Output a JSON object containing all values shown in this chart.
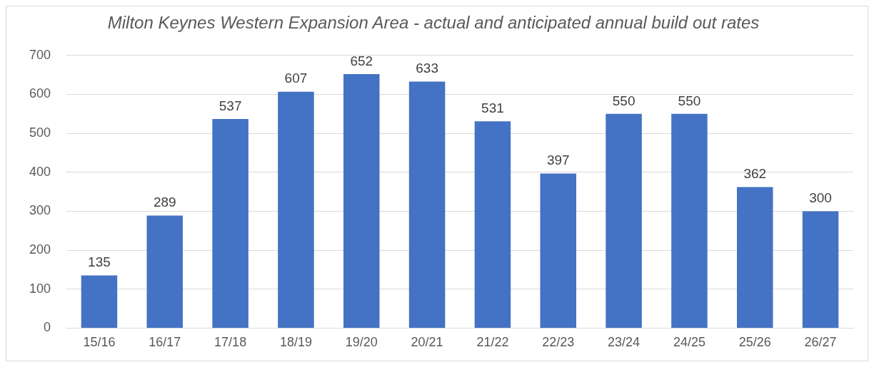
{
  "chart_data": {
    "type": "bar",
    "title": "Milton Keynes Western Expansion Area - actual and anticipated annual build out rates",
    "categories": [
      "15/16",
      "16/17",
      "17/18",
      "18/19",
      "19/20",
      "20/21",
      "21/22",
      "22/23",
      "23/24",
      "24/25",
      "25/26",
      "26/27"
    ],
    "values": [
      135,
      289,
      537,
      607,
      652,
      633,
      531,
      397,
      550,
      550,
      362,
      300
    ],
    "color": "#4472c4",
    "ylim": [
      0,
      700
    ],
    "yticks": [
      0,
      100,
      200,
      300,
      400,
      500,
      600,
      700
    ],
    "grid": "y",
    "data_labels": true,
    "legend": false
  }
}
